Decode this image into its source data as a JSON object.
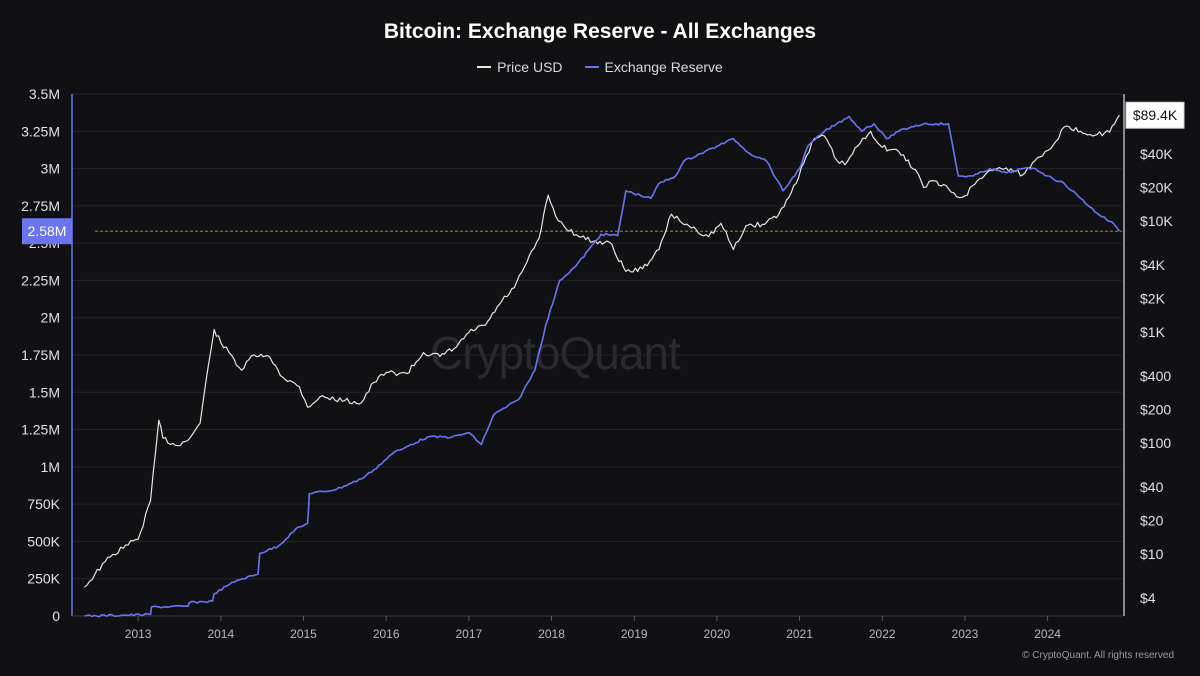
{
  "chart_data": {
    "type": "line",
    "title": "Bitcoin: Exchange Reserve - All Exchanges",
    "legend": [
      {
        "name": "Price USD",
        "color": "#e6e6e6"
      },
      {
        "name": "Exchange Reserve",
        "color": "#6b74f0"
      }
    ],
    "legend_position": "top-center",
    "grid": "horizontal",
    "x_ticks": [
      "2013",
      "2014",
      "2015",
      "2016",
      "2017",
      "2018",
      "2019",
      "2020",
      "2021",
      "2022",
      "2023",
      "2024"
    ],
    "left_axis": {
      "ticks": [
        "0",
        "250K",
        "500K",
        "750K",
        "1M",
        "1.25M",
        "1.5M",
        "1.75M",
        "2M",
        "2.25M",
        "2.5M",
        "2.75M",
        "3M",
        "3.25M",
        "3.5M"
      ],
      "ylim": [
        0,
        3500000
      ],
      "current_label": "2.58M",
      "current_value": 2580000
    },
    "right_axis": {
      "scale": "log",
      "ticks": [
        "$4",
        "$10",
        "$20",
        "$40",
        "$100",
        "$200",
        "$400",
        "$1K",
        "$2K",
        "$4K",
        "$10K",
        "$20K",
        "$40K"
      ],
      "tick_values": [
        4,
        10,
        20,
        40,
        100,
        200,
        400,
        1000,
        2000,
        4000,
        10000,
        20000,
        40000
      ],
      "current_label": "$89.4K",
      "current_value": 89400
    },
    "series": [
      {
        "name": "Price USD",
        "axis": "right",
        "color": "#e6e6e6",
        "points": [
          [
            "2012.35",
            5.0
          ],
          [
            "2012.6",
            8.5
          ],
          [
            "2012.85",
            12
          ],
          [
            "2013.0",
            13.5
          ],
          [
            "2013.15",
            30
          ],
          [
            "2013.25",
            160
          ],
          [
            "2013.3",
            110
          ],
          [
            "2013.45",
            95
          ],
          [
            "2013.6",
            105
          ],
          [
            "2013.75",
            150
          ],
          [
            "2013.85",
            500
          ],
          [
            "2013.92",
            1050
          ],
          [
            "2014.0",
            800
          ],
          [
            "2014.1",
            650
          ],
          [
            "2014.25",
            450
          ],
          [
            "2014.4",
            620
          ],
          [
            "2014.6",
            580
          ],
          [
            "2014.75",
            390
          ],
          [
            "2014.95",
            320
          ],
          [
            "2015.05",
            210
          ],
          [
            "2015.2",
            260
          ],
          [
            "2015.5",
            240
          ],
          [
            "2015.7",
            230
          ],
          [
            "2015.85",
            350
          ],
          [
            "2016.0",
            430
          ],
          [
            "2016.25",
            420
          ],
          [
            "2016.45",
            650
          ],
          [
            "2016.65",
            600
          ],
          [
            "2016.85",
            730
          ],
          [
            "2017.0",
            990
          ],
          [
            "2017.2",
            1150
          ],
          [
            "2017.4",
            1900
          ],
          [
            "2017.55",
            2500
          ],
          [
            "2017.7",
            4200
          ],
          [
            "2017.85",
            7000
          ],
          [
            "2017.96",
            17000
          ],
          [
            "2018.05",
            11000
          ],
          [
            "2018.15",
            9000
          ],
          [
            "2018.3",
            7500
          ],
          [
            "2018.5",
            6500
          ],
          [
            "2018.7",
            6400
          ],
          [
            "2018.9",
            3500
          ],
          [
            "2019.1",
            3700
          ],
          [
            "2019.3",
            5500
          ],
          [
            "2019.45",
            11500
          ],
          [
            "2019.55",
            10000
          ],
          [
            "2019.75",
            8300
          ],
          [
            "2019.9",
            7200
          ],
          [
            "2020.05",
            9500
          ],
          [
            "2020.2",
            5500
          ],
          [
            "2020.35",
            9000
          ],
          [
            "2020.55",
            9300
          ],
          [
            "2020.75",
            11500
          ],
          [
            "2020.9",
            18000
          ],
          [
            "2021.05",
            33000
          ],
          [
            "2021.18",
            55000
          ],
          [
            "2021.3",
            58000
          ],
          [
            "2021.45",
            35000
          ],
          [
            "2021.55",
            32000
          ],
          [
            "2021.7",
            47000
          ],
          [
            "2021.86",
            64000
          ],
          [
            "2022.0",
            46000
          ],
          [
            "2022.2",
            42000
          ],
          [
            "2022.4",
            29000
          ],
          [
            "2022.5",
            20000
          ],
          [
            "2022.6",
            23000
          ],
          [
            "2022.8",
            19500
          ],
          [
            "2022.9",
            16500
          ],
          [
            "2023.0",
            16800
          ],
          [
            "2023.15",
            23000
          ],
          [
            "2023.3",
            28500
          ],
          [
            "2023.5",
            30000
          ],
          [
            "2023.7",
            26000
          ],
          [
            "2023.85",
            35000
          ],
          [
            "2023.97",
            42000
          ],
          [
            "2024.1",
            52000
          ],
          [
            "2024.2",
            70000
          ],
          [
            "2024.4",
            64000
          ],
          [
            "2024.6",
            60000
          ],
          [
            "2024.75",
            63000
          ],
          [
            "2024.87",
            89400
          ]
        ]
      },
      {
        "name": "Exchange Reserve",
        "axis": "left",
        "color": "#6b74f0",
        "points": [
          [
            "2012.35",
            0
          ],
          [
            "2012.8",
            5000
          ],
          [
            "2013.15",
            10000
          ],
          [
            "2013.16",
            60000
          ],
          [
            "2013.6",
            65000
          ],
          [
            "2013.62",
            90000
          ],
          [
            "2013.9",
            100000
          ],
          [
            "2013.92",
            150000
          ],
          [
            "2014.1",
            210000
          ],
          [
            "2014.2",
            240000
          ],
          [
            "2014.45",
            280000
          ],
          [
            "2014.47",
            420000
          ],
          [
            "2014.7",
            470000
          ],
          [
            "2014.9",
            580000
          ],
          [
            "2015.05",
            620000
          ],
          [
            "2015.07",
            820000
          ],
          [
            "2015.4",
            850000
          ],
          [
            "2015.7",
            920000
          ],
          [
            "2015.85",
            980000
          ],
          [
            "2016.1",
            1100000
          ],
          [
            "2016.2",
            1120000
          ],
          [
            "2016.3",
            1150000
          ],
          [
            "2016.5",
            1200000
          ],
          [
            "2016.8",
            1200000
          ],
          [
            "2017.0",
            1230000
          ],
          [
            "2017.15",
            1150000
          ],
          [
            "2017.3",
            1350000
          ],
          [
            "2017.6",
            1450000
          ],
          [
            "2017.8",
            1650000
          ],
          [
            "2017.93",
            1950000
          ],
          [
            "2018.1",
            2250000
          ],
          [
            "2018.3",
            2350000
          ],
          [
            "2018.6",
            2560000
          ],
          [
            "2018.8",
            2550000
          ],
          [
            "2018.9",
            2850000
          ],
          [
            "2019.2",
            2800000
          ],
          [
            "2019.3",
            2900000
          ],
          [
            "2019.5",
            2950000
          ],
          [
            "2019.6",
            3050000
          ],
          [
            "2019.8",
            3100000
          ],
          [
            "2020.0",
            3150000
          ],
          [
            "2020.2",
            3200000
          ],
          [
            "2020.4",
            3100000
          ],
          [
            "2020.6",
            3050000
          ],
          [
            "2020.8",
            2850000
          ],
          [
            "2021.0",
            3000000
          ],
          [
            "2021.1",
            3150000
          ],
          [
            "2021.3",
            3250000
          ],
          [
            "2021.45",
            3300000
          ],
          [
            "2021.6",
            3350000
          ],
          [
            "2021.75",
            3250000
          ],
          [
            "2021.9",
            3300000
          ],
          [
            "2022.05",
            3200000
          ],
          [
            "2022.2",
            3250000
          ],
          [
            "2022.35",
            3280000
          ],
          [
            "2022.5",
            3300000
          ],
          [
            "2022.65",
            3300000
          ],
          [
            "2022.8",
            3300000
          ],
          [
            "2022.92",
            2950000
          ],
          [
            "2023.1",
            2950000
          ],
          [
            "2023.3",
            3000000
          ],
          [
            "2023.5",
            2970000
          ],
          [
            "2023.7",
            3000000
          ],
          [
            "2023.85",
            3000000
          ],
          [
            "2024.0",
            2950000
          ],
          [
            "2024.2",
            2900000
          ],
          [
            "2024.4",
            2800000
          ],
          [
            "2024.6",
            2700000
          ],
          [
            "2024.8",
            2630000
          ],
          [
            "2024.87",
            2580000
          ]
        ]
      }
    ]
  },
  "watermark": "CryptoQuant",
  "footer": "© CryptoQuant. All rights reserved"
}
